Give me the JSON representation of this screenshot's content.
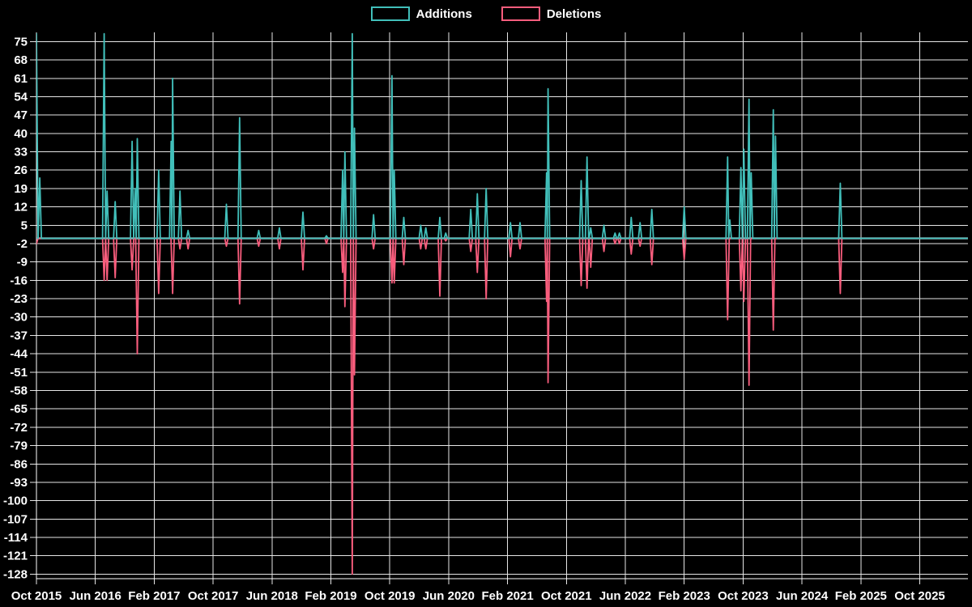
{
  "legend": {
    "items": [
      {
        "label": "Additions",
        "color": "#41bfba"
      },
      {
        "label": "Deletions",
        "color": "#f95d7d"
      }
    ]
  },
  "chart_data": {
    "type": "line",
    "title": "",
    "background_color": "#000000",
    "grid_color": "#e6e6e6",
    "axis_color": "#ffffff",
    "zero_line_color": "#8aa9ad",
    "grid": true,
    "legend_position": "top-center",
    "x_axis": {
      "label": "",
      "tick_labels": [
        "Oct 2015",
        "Jun 2016",
        "Feb 2017",
        "Oct 2017",
        "Jun 2018",
        "Feb 2019",
        "Oct 2019",
        "Jun 2020",
        "Feb 2021",
        "Oct 2021",
        "Jun 2022",
        "Feb 2023",
        "Oct 2023",
        "Jun 2024",
        "Feb 2025",
        "Oct 2025"
      ],
      "months_between_ticks": 8
    },
    "y_axis": {
      "label": "",
      "min": -128,
      "max": 75,
      "step": 7,
      "tick_labels": [
        75,
        68,
        61,
        54,
        47,
        40,
        33,
        26,
        19,
        12,
        5,
        -2,
        -9,
        -16,
        -23,
        -30,
        -37,
        -44,
        -51,
        -58,
        -65,
        -72,
        -79,
        -86,
        -93,
        -100,
        -107,
        -114,
        -121,
        -128
      ]
    },
    "series": [
      {
        "name": "Additions",
        "color": "#41bfba",
        "baseline": 0,
        "points_months_value": [
          [
            0,
            78
          ],
          [
            0.45,
            23
          ],
          [
            9.2,
            78
          ],
          [
            9.6,
            18
          ],
          [
            10.7,
            14
          ],
          [
            13.0,
            37
          ],
          [
            13.4,
            19
          ],
          [
            13.7,
            38
          ],
          [
            16.6,
            26
          ],
          [
            18.3,
            37
          ],
          [
            18.5,
            61
          ],
          [
            19.5,
            18
          ],
          [
            20.6,
            3
          ],
          [
            25.8,
            13
          ],
          [
            27.6,
            46
          ],
          [
            30.2,
            3
          ],
          [
            33.0,
            4
          ],
          [
            36.2,
            10
          ],
          [
            39.4,
            1
          ],
          [
            41.6,
            26
          ],
          [
            41.9,
            33
          ],
          [
            42.9,
            78
          ],
          [
            43.2,
            42
          ],
          [
            45.8,
            9
          ],
          [
            48.3,
            62
          ],
          [
            48.6,
            26
          ],
          [
            49.9,
            8
          ],
          [
            52.2,
            5
          ],
          [
            52.9,
            4
          ],
          [
            54.8,
            8
          ],
          [
            55.6,
            2
          ],
          [
            59.0,
            11
          ],
          [
            59.9,
            17
          ],
          [
            61.1,
            19
          ],
          [
            64.4,
            6
          ],
          [
            65.7,
            6
          ],
          [
            69.3,
            25
          ],
          [
            69.5,
            57
          ],
          [
            74.0,
            22
          ],
          [
            74.8,
            31
          ],
          [
            75.3,
            4
          ],
          [
            77.1,
            5
          ],
          [
            78.6,
            2
          ],
          [
            79.2,
            2
          ],
          [
            80.8,
            8
          ],
          [
            82.0,
            6
          ],
          [
            83.6,
            11
          ],
          [
            88.0,
            12
          ],
          [
            93.9,
            31
          ],
          [
            94.2,
            7
          ],
          [
            95.7,
            27
          ],
          [
            96.1,
            34
          ],
          [
            96.8,
            53
          ],
          [
            97.1,
            25
          ],
          [
            100.1,
            49
          ],
          [
            100.4,
            39
          ],
          [
            109.2,
            21
          ]
        ]
      },
      {
        "name": "Deletions",
        "color": "#f95d7d",
        "baseline": 0,
        "points_months_value": [
          [
            0,
            -2
          ],
          [
            9.2,
            -16
          ],
          [
            9.6,
            -16
          ],
          [
            10.7,
            -15
          ],
          [
            13.0,
            -12
          ],
          [
            13.7,
            -44
          ],
          [
            16.6,
            -21
          ],
          [
            18.5,
            -21
          ],
          [
            19.5,
            -4
          ],
          [
            20.6,
            -4
          ],
          [
            25.8,
            -3
          ],
          [
            27.6,
            -25
          ],
          [
            30.2,
            -3
          ],
          [
            33.0,
            -4
          ],
          [
            36.2,
            -12
          ],
          [
            39.4,
            -2
          ],
          [
            41.6,
            -13
          ],
          [
            41.9,
            -26
          ],
          [
            42.9,
            -128
          ],
          [
            43.2,
            -52
          ],
          [
            45.8,
            -4
          ],
          [
            48.3,
            -17
          ],
          [
            48.6,
            -17
          ],
          [
            49.9,
            -10
          ],
          [
            52.2,
            -4
          ],
          [
            52.9,
            -4
          ],
          [
            54.8,
            -22
          ],
          [
            55.6,
            -1
          ],
          [
            59.0,
            -5
          ],
          [
            59.9,
            -13
          ],
          [
            61.1,
            -23
          ],
          [
            64.4,
            -7
          ],
          [
            65.7,
            -4
          ],
          [
            69.3,
            -24
          ],
          [
            69.5,
            -55
          ],
          [
            74.0,
            -18
          ],
          [
            74.8,
            -19
          ],
          [
            75.3,
            -11
          ],
          [
            77.1,
            -5
          ],
          [
            78.6,
            -2
          ],
          [
            79.2,
            -2
          ],
          [
            80.8,
            -6
          ],
          [
            82.0,
            -3
          ],
          [
            83.6,
            -10
          ],
          [
            88.0,
            -8
          ],
          [
            93.9,
            -31
          ],
          [
            95.7,
            -20
          ],
          [
            96.1,
            -24
          ],
          [
            96.8,
            -56
          ],
          [
            100.1,
            -35
          ],
          [
            109.2,
            -21
          ]
        ]
      }
    ]
  }
}
